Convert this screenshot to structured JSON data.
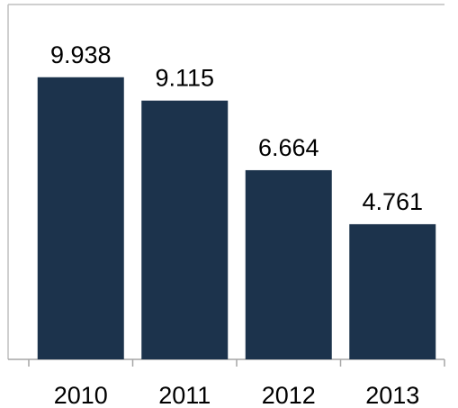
{
  "chart_data": {
    "type": "bar",
    "categories": [
      "2010",
      "2011",
      "2012",
      "2013"
    ],
    "values": [
      9.938,
      9.115,
      6.664,
      4.761
    ],
    "data_labels": [
      "9.938",
      "9.115",
      "6.664",
      "4.761"
    ],
    "title": "",
    "xlabel": "",
    "ylabel": "",
    "ylim": [
      0,
      12.5
    ],
    "grid": false,
    "legend": "none"
  },
  "colors": {
    "bar": "#1C334C",
    "axis": "#A6A6A6",
    "text": "#000000"
  }
}
